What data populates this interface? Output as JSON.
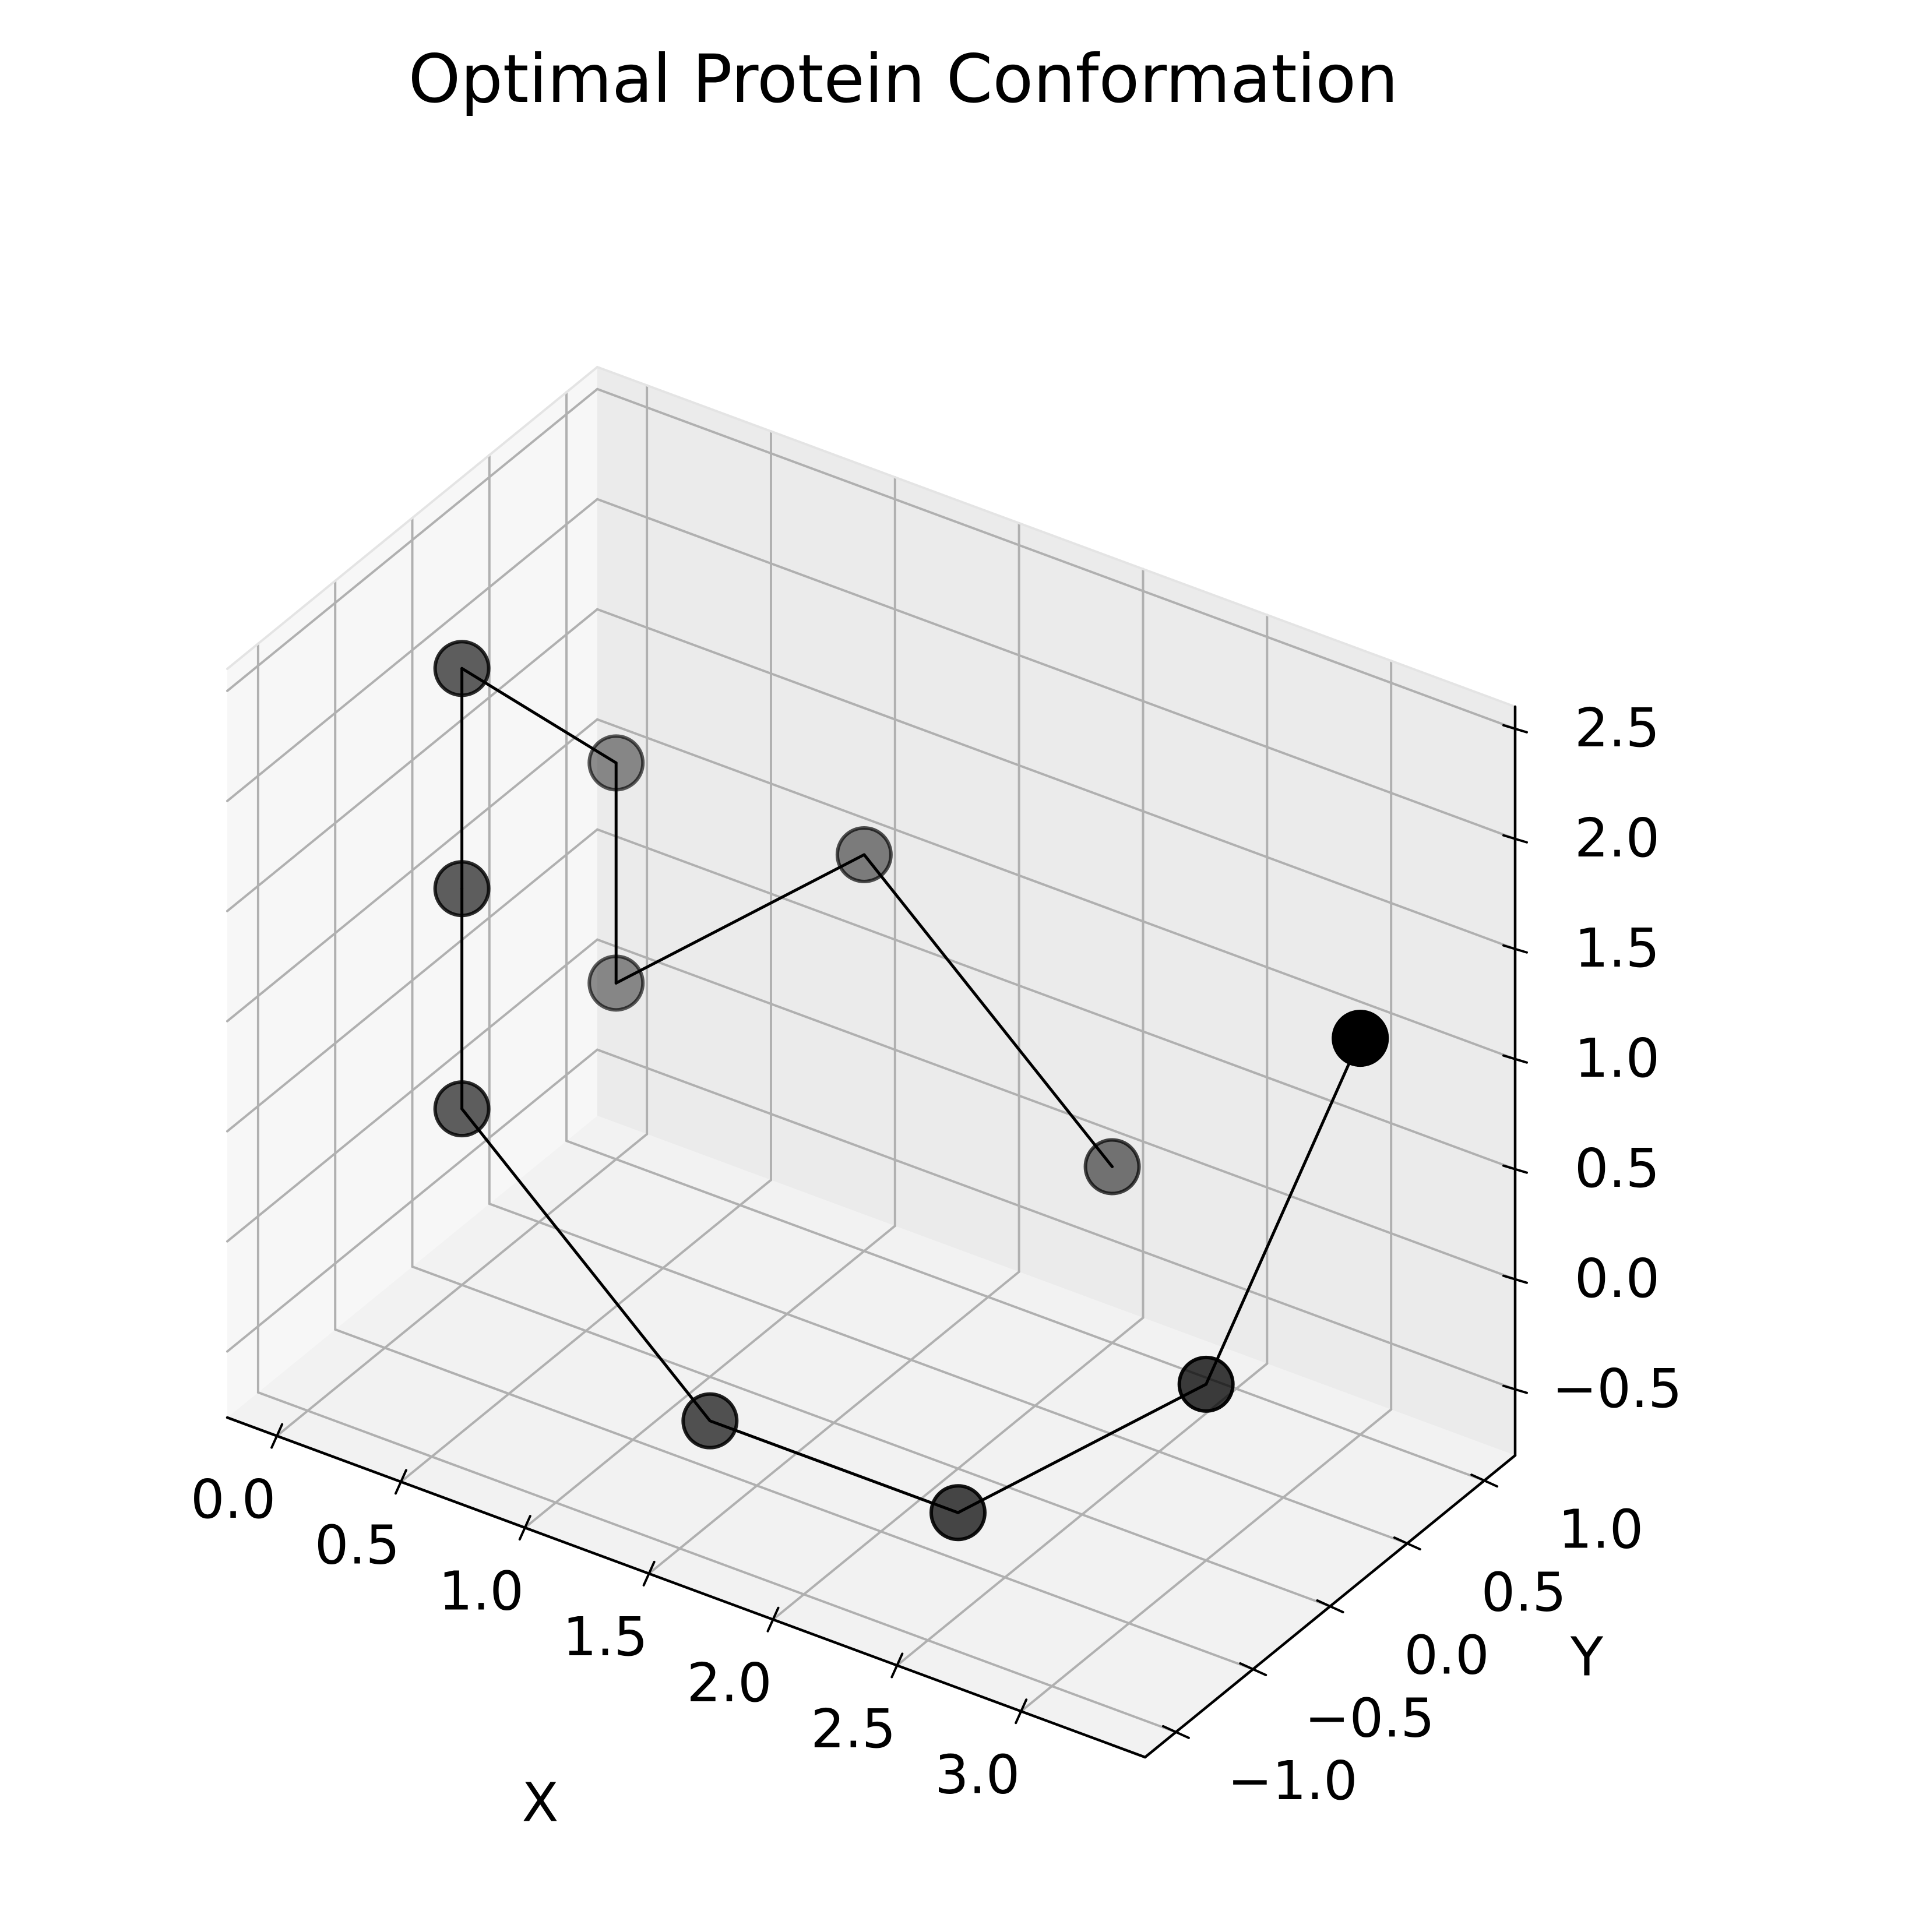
{
  "chart_data": {
    "type": "scatter",
    "projection": "3d",
    "title": "Optimal Protein Conformation",
    "xlabel": "X",
    "ylabel": "Y",
    "zlabel": "",
    "xlim": [
      -0.2,
      3.5
    ],
    "ylim": [
      -1.2,
      1.2
    ],
    "zlim": [
      -0.8,
      2.6
    ],
    "xticks": [
      "0.0",
      "0.5",
      "1.0",
      "1.5",
      "2.0",
      "2.5",
      "3.0"
    ],
    "yticks": [
      "−1.0",
      "−0.5",
      "0.0",
      "0.5",
      "1.0"
    ],
    "zticks": [
      "−0.5",
      "0.0",
      "0.5",
      "1.0",
      "1.5",
      "2.0",
      "2.5"
    ],
    "grid": true,
    "legend": "none",
    "marker_color": "#000000",
    "line_color": "#000000",
    "series": [
      {
        "x": [
          3,
          3,
          3,
          2,
          1,
          0,
          0,
          0,
          0,
          0,
          1,
          2
        ],
        "y": [
          1,
          1,
          0,
          0,
          0,
          0,
          0,
          0,
          1,
          1,
          1,
          1
        ],
        "z": [
          1,
          1,
          0,
          -1,
          -1,
          0,
          1,
          2,
          1,
          0,
          1,
          0
        ]
      }
    ]
  }
}
